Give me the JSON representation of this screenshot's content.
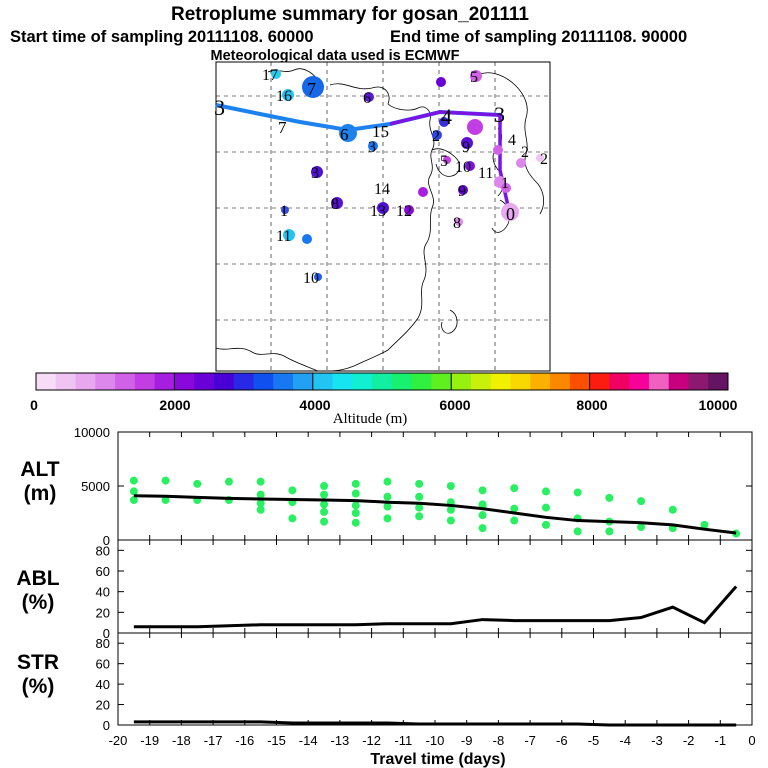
{
  "header": {
    "title": "Retroplume summary for gosan_201111",
    "start_label": "Start time of sampling 20111108. 60000",
    "end_label": "End time of sampling 20111108. 90000",
    "met_label": "Meteorological data used is ECMWF"
  },
  "colorbar": {
    "colors": [
      "#f6dcf6",
      "#f0c4f2",
      "#e8a8f0",
      "#dd86ec",
      "#d062e8",
      "#c03ee4",
      "#a81ee0",
      "#8a08dc",
      "#6a00d8",
      "#4800d6",
      "#2828e6",
      "#1050ee",
      "#1878f2",
      "#22a0f4",
      "#22c4f4",
      "#16e4f0",
      "#10f0d0",
      "#10f0a0",
      "#18f070",
      "#30f040",
      "#60f020",
      "#98f010",
      "#c8f00a",
      "#f0f000",
      "#f8d800",
      "#fcb000",
      "#fc8800",
      "#fc5000",
      "#fc1c10",
      "#f00060",
      "#f8009a",
      "#f060c0",
      "#c80080",
      "#8c1870",
      "#641460"
    ],
    "tick_labels": [
      "0",
      "2000",
      "4000",
      "6000",
      "8000",
      "10000"
    ],
    "title": "Altitude (m)"
  },
  "map": {
    "trajectory_labels": [
      {
        "text": "3",
        "color": "#000000",
        "big": true
      },
      {
        "text": "7",
        "color": "#000000",
        "big": false
      },
      {
        "text": "6",
        "color": "#1f6be8",
        "big": false
      },
      {
        "text": "15",
        "color": "#000000",
        "big": false
      },
      {
        "text": "4",
        "color": "#000000",
        "big": true
      },
      {
        "text": "3",
        "color": "#000000",
        "big": true
      }
    ],
    "point_labels": [
      "17",
      "16",
      "7",
      "6",
      "5",
      "2",
      "3",
      "4",
      "2",
      "5",
      "10",
      "11",
      "1",
      "0",
      "3",
      "14",
      "13",
      "12",
      "9",
      "8",
      "1",
      "11",
      "8",
      "10",
      "9",
      "2"
    ]
  },
  "chart_data": [
    {
      "type": "scatter+line",
      "panel": "ALT (m)",
      "ylabel": "ALT\n(m)",
      "ylim": [
        0,
        10000
      ],
      "yticks": [
        0,
        5000,
        10000
      ],
      "xlabel": "Travel time (days)",
      "xlim": [
        -20,
        0
      ],
      "xticks": [
        -20,
        -19,
        -18,
        -17,
        -16,
        -15,
        -14,
        -13,
        -12,
        -11,
        -10,
        -9,
        -8,
        -7,
        -6,
        -5,
        -4,
        -3,
        -2,
        -1,
        0
      ],
      "line_x": [
        -19.5,
        -18.5,
        -17.5,
        -16.5,
        -15.5,
        -14.5,
        -13.5,
        -12.5,
        -11.5,
        -10.5,
        -9.5,
        -8.5,
        -7.5,
        -6.5,
        -5.5,
        -4.5,
        -3.5,
        -2.5,
        -1.5,
        -0.5
      ],
      "line_y": [
        4100,
        4050,
        3950,
        3850,
        3800,
        3750,
        3700,
        3650,
        3500,
        3400,
        3200,
        2900,
        2500,
        2100,
        1800,
        1700,
        1600,
        1400,
        1000,
        650
      ],
      "points": [
        {
          "x": -19.5,
          "y": 5500
        },
        {
          "x": -19.5,
          "y": 4500
        },
        {
          "x": -19.5,
          "y": 3700
        },
        {
          "x": -18.5,
          "y": 5500
        },
        {
          "x": -18.5,
          "y": 3700
        },
        {
          "x": -17.5,
          "y": 5200
        },
        {
          "x": -17.5,
          "y": 3700
        },
        {
          "x": -16.5,
          "y": 5400
        },
        {
          "x": -16.5,
          "y": 3700
        },
        {
          "x": -15.5,
          "y": 5400
        },
        {
          "x": -15.5,
          "y": 4200
        },
        {
          "x": -15.5,
          "y": 3400
        },
        {
          "x": -15.5,
          "y": 2800
        },
        {
          "x": -14.5,
          "y": 4600
        },
        {
          "x": -14.5,
          "y": 3500
        },
        {
          "x": -14.5,
          "y": 2000
        },
        {
          "x": -13.5,
          "y": 5000
        },
        {
          "x": -13.5,
          "y": 4200
        },
        {
          "x": -13.5,
          "y": 3300
        },
        {
          "x": -13.5,
          "y": 2600
        },
        {
          "x": -13.5,
          "y": 1700
        },
        {
          "x": -12.5,
          "y": 5200
        },
        {
          "x": -12.5,
          "y": 4300
        },
        {
          "x": -12.5,
          "y": 3200
        },
        {
          "x": -12.5,
          "y": 2500
        },
        {
          "x": -12.5,
          "y": 1600
        },
        {
          "x": -11.5,
          "y": 5400
        },
        {
          "x": -11.5,
          "y": 4000
        },
        {
          "x": -11.5,
          "y": 3100
        },
        {
          "x": -11.5,
          "y": 2000
        },
        {
          "x": -10.5,
          "y": 5200
        },
        {
          "x": -10.5,
          "y": 4000
        },
        {
          "x": -10.5,
          "y": 3000
        },
        {
          "x": -10.5,
          "y": 2200
        },
        {
          "x": -9.5,
          "y": 5000
        },
        {
          "x": -9.5,
          "y": 3500
        },
        {
          "x": -9.5,
          "y": 2800
        },
        {
          "x": -9.5,
          "y": 1800
        },
        {
          "x": -8.5,
          "y": 4600
        },
        {
          "x": -8.5,
          "y": 3300
        },
        {
          "x": -8.5,
          "y": 3100
        },
        {
          "x": -8.5,
          "y": 2300
        },
        {
          "x": -8.5,
          "y": 1100
        },
        {
          "x": -7.5,
          "y": 4800
        },
        {
          "x": -7.5,
          "y": 2900
        },
        {
          "x": -7.5,
          "y": 1800
        },
        {
          "x": -6.5,
          "y": 4500
        },
        {
          "x": -6.5,
          "y": 3000
        },
        {
          "x": -6.5,
          "y": 1400
        },
        {
          "x": -5.5,
          "y": 4400
        },
        {
          "x": -5.5,
          "y": 2000
        },
        {
          "x": -5.5,
          "y": 800
        },
        {
          "x": -4.5,
          "y": 3900
        },
        {
          "x": -4.5,
          "y": 1700
        },
        {
          "x": -4.5,
          "y": 800
        },
        {
          "x": -3.5,
          "y": 3600
        },
        {
          "x": -3.5,
          "y": 1200
        },
        {
          "x": -2.5,
          "y": 2800
        },
        {
          "x": -2.5,
          "y": 1100
        },
        {
          "x": -1.5,
          "y": 1400
        },
        {
          "x": -0.5,
          "y": 600
        }
      ]
    },
    {
      "type": "line",
      "panel": "ABL (%)",
      "ylabel": "ABL\n(%)",
      "ylim": [
        0,
        90
      ],
      "yticks": [
        0,
        20,
        40,
        60,
        80
      ],
      "x": [
        -19.5,
        -18.5,
        -17.5,
        -16.5,
        -15.5,
        -14.5,
        -13.5,
        -12.5,
        -11.5,
        -10.5,
        -9.5,
        -8.5,
        -7.5,
        -6.5,
        -5.5,
        -4.5,
        -3.5,
        -2.5,
        -1.5,
        -0.5
      ],
      "y": [
        6,
        6,
        6,
        7,
        8,
        8,
        8,
        8,
        9,
        9,
        9,
        13,
        12,
        12,
        12,
        12,
        15,
        25,
        10,
        45
      ]
    },
    {
      "type": "line",
      "panel": "STR (%)",
      "ylabel": "STR\n(%)",
      "ylim": [
        0,
        90
      ],
      "yticks": [
        0,
        20,
        40,
        60,
        80
      ],
      "x": [
        -19.5,
        -18.5,
        -17.5,
        -16.5,
        -15.5,
        -14.5,
        -13.5,
        -12.5,
        -11.5,
        -10.5,
        -9.5,
        -8.5,
        -7.5,
        -6.5,
        -5.5,
        -4.5,
        -3.5,
        -2.5,
        -1.5,
        -0.5
      ],
      "y": [
        3,
        3,
        3,
        3,
        3,
        2,
        2,
        2,
        2,
        1,
        1,
        1,
        1,
        1,
        1,
        0,
        0,
        0,
        0,
        0
      ]
    }
  ]
}
